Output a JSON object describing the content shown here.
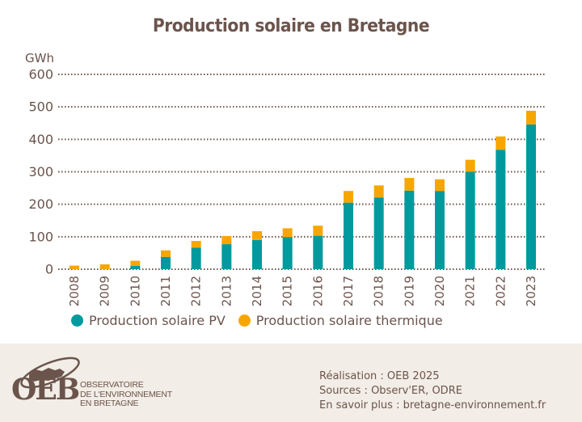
{
  "chart_data": {
    "type": "bar",
    "stacked": true,
    "title": "Production solaire en Bretagne",
    "ylabel": "GWh",
    "xlabel": "",
    "ylim": [
      0,
      600
    ],
    "yticks": [
      "0",
      "100",
      "200",
      "300",
      "400",
      "500",
      "600"
    ],
    "grid": true,
    "legend_position": "bottom-left",
    "categories": [
      "2008",
      "2009",
      "2010",
      "2011",
      "2012",
      "2013",
      "2014",
      "2015",
      "2016",
      "2017",
      "2018",
      "2019",
      "2020",
      "2021",
      "2022",
      "2023"
    ],
    "series": [
      {
        "name": "Production solaire PV",
        "color": "#009a9e",
        "values": [
          0,
          0,
          10,
          38,
          66,
          77,
          90,
          99,
          103,
          205,
          221,
          242,
          241,
          300,
          368,
          446
        ]
      },
      {
        "name": "Production solaire thermique",
        "color": "#f7a600",
        "values": [
          11,
          15,
          16,
          20,
          21,
          25,
          27,
          27,
          31,
          36,
          37,
          39,
          36,
          37,
          41,
          42
        ]
      }
    ]
  },
  "footer": {
    "logo_abbrev": "OEB",
    "logo_lines": [
      "OBSERVATOIRE",
      "DE L'ENVIRONNEMENT",
      "EN BRETAGNE"
    ],
    "credits": [
      "Réalisation : OEB 2025",
      "Sources : Observ'ER, ODRE",
      "En savoir plus : bretagne-environnement.fr"
    ]
  }
}
